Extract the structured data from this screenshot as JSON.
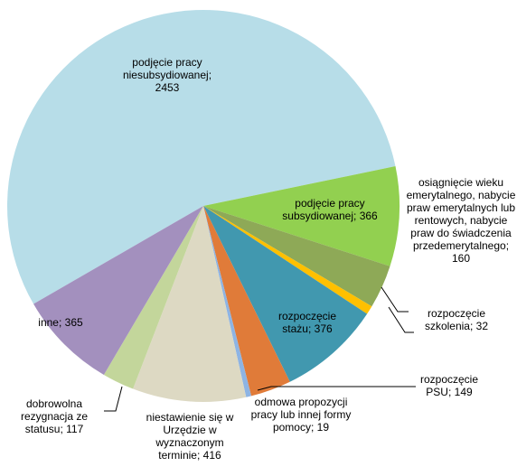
{
  "chart_data": {
    "type": "pie",
    "categories": [
      "podjęcie pracy niesubsydiowanej",
      "podjęcie pracy subsydiowanej",
      "osiągnięcie wieku emerytalnego, nabycie praw emerytalnych lub rentowych, nabycie praw do świadczenia przedemerytalnego",
      "rozpoczęcie szkolenia",
      "rozpoczęcie stażu",
      "rozpoczęcie PSU",
      "odmowa propozycji pracy lub innej formy pomocy",
      "niestawienie się w Urzędzie w wyznaczonym terminie",
      "dobrowolna rezygnacja ze statusu",
      "inne"
    ],
    "values": [
      2453,
      366,
      160,
      32,
      376,
      149,
      19,
      416,
      117,
      365
    ],
    "colors": [
      "#b7dde8",
      "#92d050",
      "#8ea957",
      "#ffc000",
      "#4198af",
      "#e07b39",
      "#8eb4e3",
      "#ddd9c3",
      "#c3d69b",
      "#a390be"
    ],
    "label_separator": ";"
  }
}
